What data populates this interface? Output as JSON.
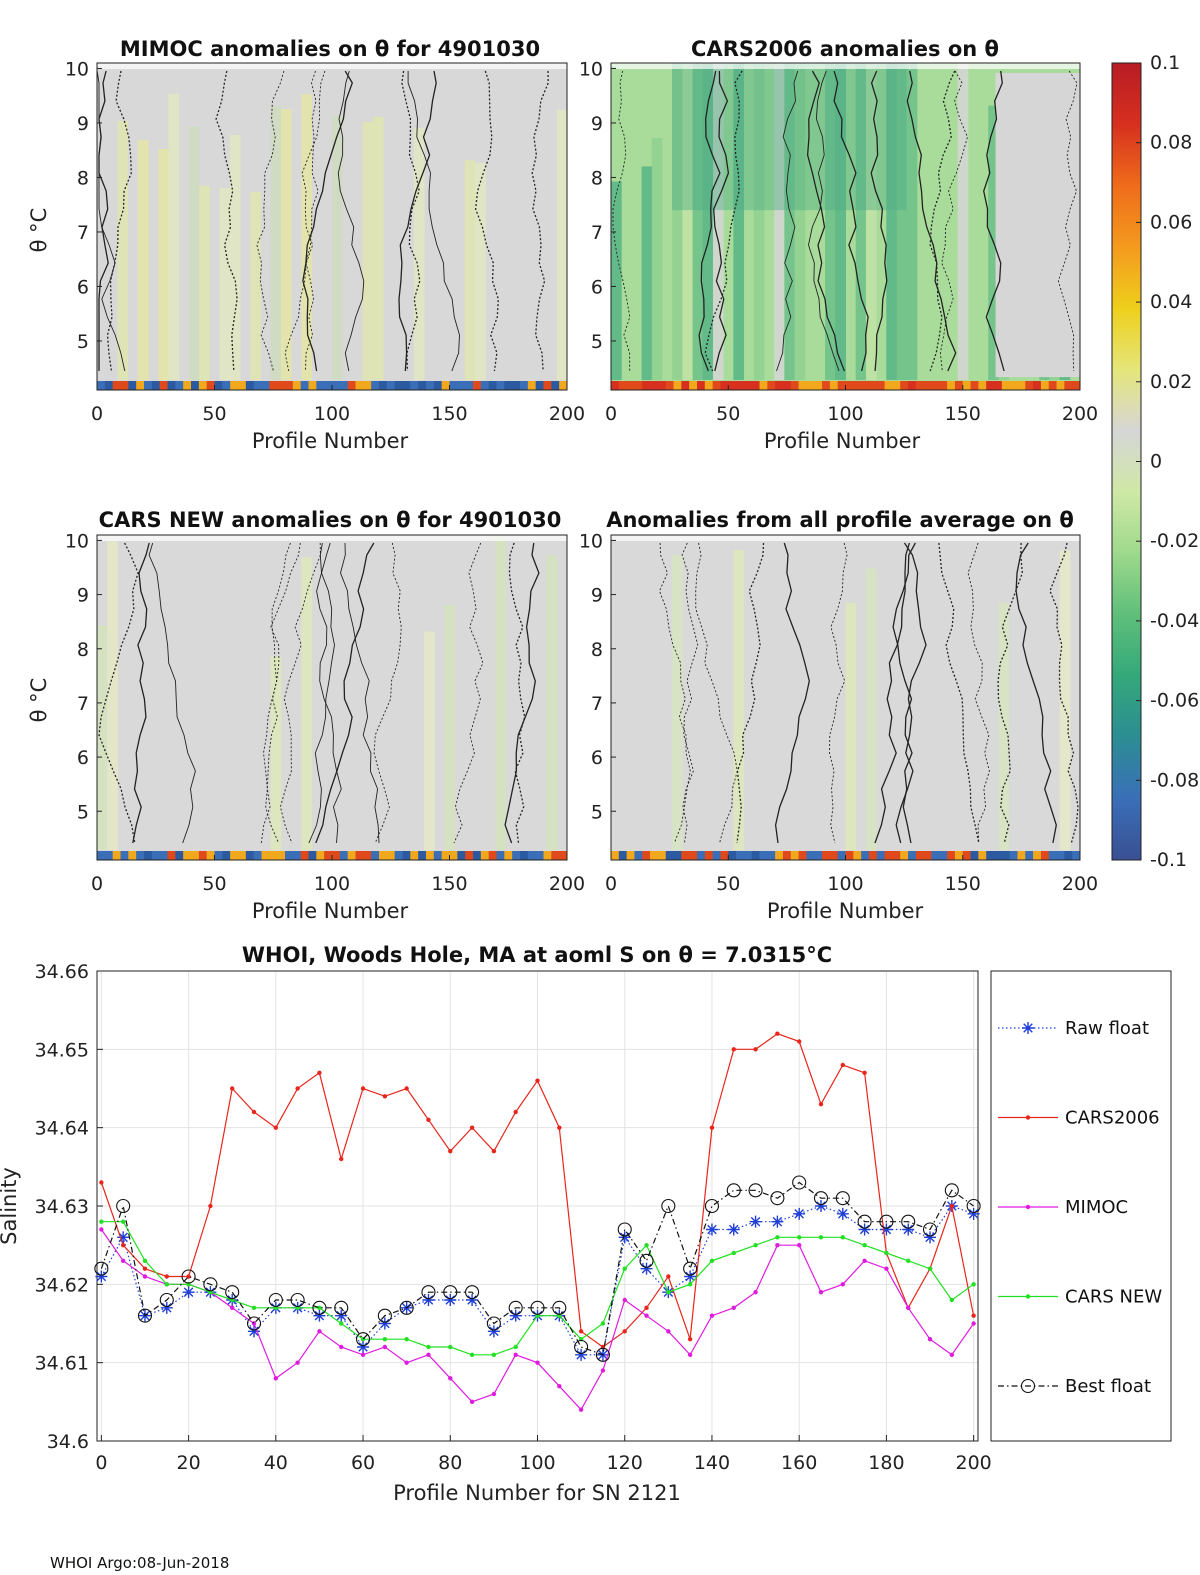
{
  "footer": "WHOI Argo:08-Jun-2018",
  "panels": [
    {
      "title": "MIMOC anomalies on θ  for 4901030",
      "xlabel": "Profile Number",
      "ylabel": "θ °C",
      "theme": "mimoc"
    },
    {
      "title": "CARS2006 anomalies on θ",
      "xlabel": "Profile Number",
      "ylabel": "",
      "theme": "cars2006"
    },
    {
      "title": "CARS NEW anomalies on θ for 4901030",
      "xlabel": "Profile Number",
      "ylabel": "θ °C",
      "theme": "carsnew"
    },
    {
      "title": "Anomalies from all profile average on θ",
      "xlabel": "Profile Number",
      "ylabel": "",
      "theme": "avg"
    }
  ],
  "panel_axes": {
    "xticks": [
      "0",
      "50",
      "100",
      "150",
      "200"
    ],
    "yticks": [
      "5",
      "6",
      "7",
      "8",
      "9",
      "10"
    ],
    "xlim": [
      0,
      200
    ],
    "ylim": [
      4.1,
      10.1
    ]
  },
  "colorbar": {
    "ticks": [
      "0.1",
      "0.08",
      "0.06",
      "0.04",
      "0.02",
      "0",
      "-0.02",
      "-0.04",
      "-0.06",
      "-0.08",
      "-0.1"
    ],
    "colors": [
      "#b71c25",
      "#d7301f",
      "#ef6c1b",
      "#f49a1e",
      "#eecf1c",
      "#e4e67a",
      "#d6d6d6",
      "#cfe8a6",
      "#9ed98c",
      "#5fbf7a",
      "#34a87a",
      "#2c8d93",
      "#3a6fb8",
      "#3a4f93"
    ]
  },
  "chart_data": {
    "type": "line",
    "title": "WHOI, Woods Hole, MA at aoml S on θ = 7.0315°C",
    "xlabel": "Profile Number for SN 2121",
    "ylabel": "Salinity",
    "xlim": [
      -1,
      201
    ],
    "ylim": [
      34.6,
      34.66
    ],
    "xticks": [
      "0",
      "20",
      "40",
      "60",
      "80",
      "100",
      "120",
      "140",
      "160",
      "180",
      "200"
    ],
    "yticks": [
      "34.6",
      "34.61",
      "34.62",
      "34.63",
      "34.64",
      "34.65",
      "34.66"
    ],
    "grid": true,
    "legend_position": "right",
    "series": [
      {
        "name": "Raw float",
        "color": "#1f3fd6",
        "style": "dotted-star",
        "x": [
          0,
          5,
          10,
          15,
          20,
          25,
          30,
          35,
          40,
          45,
          50,
          55,
          60,
          65,
          70,
          75,
          80,
          85,
          90,
          95,
          100,
          105,
          110,
          115,
          120,
          125,
          130,
          135,
          140,
          145,
          150,
          155,
          160,
          165,
          170,
          175,
          180,
          185,
          190,
          195,
          200
        ],
        "y": [
          34.621,
          34.626,
          34.616,
          34.617,
          34.619,
          34.619,
          34.618,
          34.614,
          34.617,
          34.617,
          34.616,
          34.616,
          34.612,
          34.615,
          34.617,
          34.618,
          34.618,
          34.618,
          34.614,
          34.616,
          34.616,
          34.616,
          34.611,
          34.611,
          34.626,
          34.622,
          34.619,
          34.621,
          34.627,
          34.627,
          34.628,
          34.628,
          34.629,
          34.63,
          34.629,
          34.627,
          34.627,
          34.627,
          34.626,
          34.63,
          34.629
        ]
      },
      {
        "name": "CARS2006",
        "color": "#e8261c",
        "style": "solid-dot",
        "x": [
          0,
          5,
          10,
          15,
          20,
          25,
          30,
          35,
          40,
          45,
          50,
          55,
          60,
          65,
          70,
          75,
          80,
          85,
          90,
          95,
          100,
          105,
          110,
          115,
          120,
          125,
          130,
          135,
          140,
          145,
          150,
          155,
          160,
          165,
          170,
          175,
          180,
          185,
          190,
          195,
          200
        ],
        "y": [
          34.633,
          34.625,
          34.622,
          34.621,
          34.621,
          34.63,
          34.645,
          34.642,
          34.64,
          34.645,
          34.647,
          34.636,
          34.645,
          34.644,
          34.645,
          34.641,
          34.637,
          34.64,
          34.637,
          34.642,
          34.646,
          34.64,
          34.614,
          34.612,
          34.614,
          34.617,
          34.621,
          34.613,
          34.64,
          34.65,
          34.65,
          34.652,
          34.651,
          34.643,
          34.648,
          34.647,
          34.624,
          34.617,
          34.622,
          34.63,
          34.616
        ]
      },
      {
        "name": "MIMOC",
        "color": "#e01be0",
        "style": "solid-dot",
        "x": [
          0,
          5,
          10,
          15,
          20,
          25,
          30,
          35,
          40,
          45,
          50,
          55,
          60,
          65,
          70,
          75,
          80,
          85,
          90,
          95,
          100,
          105,
          110,
          115,
          120,
          125,
          130,
          135,
          140,
          145,
          150,
          155,
          160,
          165,
          170,
          175,
          180,
          185,
          190,
          195,
          200
        ],
        "y": [
          34.627,
          34.623,
          34.621,
          34.62,
          34.62,
          34.619,
          34.617,
          34.615,
          34.608,
          34.61,
          34.614,
          34.612,
          34.611,
          34.612,
          34.61,
          34.611,
          34.608,
          34.605,
          34.606,
          34.611,
          34.61,
          34.607,
          34.604,
          34.609,
          34.618,
          34.616,
          34.614,
          34.611,
          34.616,
          34.617,
          34.619,
          34.625,
          34.625,
          34.619,
          34.62,
          34.623,
          34.622,
          34.617,
          34.613,
          34.611,
          34.615
        ]
      },
      {
        "name": "CARS NEW",
        "color": "#22e022",
        "style": "solid-dot",
        "x": [
          0,
          5,
          10,
          15,
          20,
          25,
          30,
          35,
          40,
          45,
          50,
          55,
          60,
          65,
          70,
          75,
          80,
          85,
          90,
          95,
          100,
          105,
          110,
          115,
          120,
          125,
          130,
          135,
          140,
          145,
          150,
          155,
          160,
          165,
          170,
          175,
          180,
          185,
          190,
          195,
          200
        ],
        "y": [
          34.628,
          34.628,
          34.623,
          34.62,
          34.62,
          34.619,
          34.618,
          34.617,
          34.617,
          34.617,
          34.617,
          34.615,
          34.613,
          34.613,
          34.613,
          34.612,
          34.612,
          34.611,
          34.611,
          34.612,
          34.616,
          34.616,
          34.613,
          34.615,
          34.622,
          34.625,
          34.619,
          34.62,
          34.623,
          34.624,
          34.625,
          34.626,
          34.626,
          34.626,
          34.626,
          34.625,
          34.624,
          34.623,
          34.622,
          34.618,
          34.62
        ]
      },
      {
        "name": "Best float",
        "color": "#111111",
        "style": "dashdot-circle",
        "x": [
          0,
          5,
          10,
          15,
          20,
          25,
          30,
          35,
          40,
          45,
          50,
          55,
          60,
          65,
          70,
          75,
          80,
          85,
          90,
          95,
          100,
          105,
          110,
          115,
          120,
          125,
          130,
          135,
          140,
          145,
          150,
          155,
          160,
          165,
          170,
          175,
          180,
          185,
          190,
          195,
          200
        ],
        "y": [
          34.622,
          34.63,
          34.616,
          34.618,
          34.621,
          34.62,
          34.619,
          34.615,
          34.618,
          34.618,
          34.617,
          34.617,
          34.613,
          34.616,
          34.617,
          34.619,
          34.619,
          34.619,
          34.615,
          34.617,
          34.617,
          34.617,
          34.612,
          34.611,
          34.627,
          34.623,
          34.63,
          34.622,
          34.63,
          34.632,
          34.632,
          34.631,
          34.633,
          34.631,
          34.631,
          34.628,
          34.628,
          34.628,
          34.627,
          34.632,
          34.63
        ]
      }
    ]
  }
}
